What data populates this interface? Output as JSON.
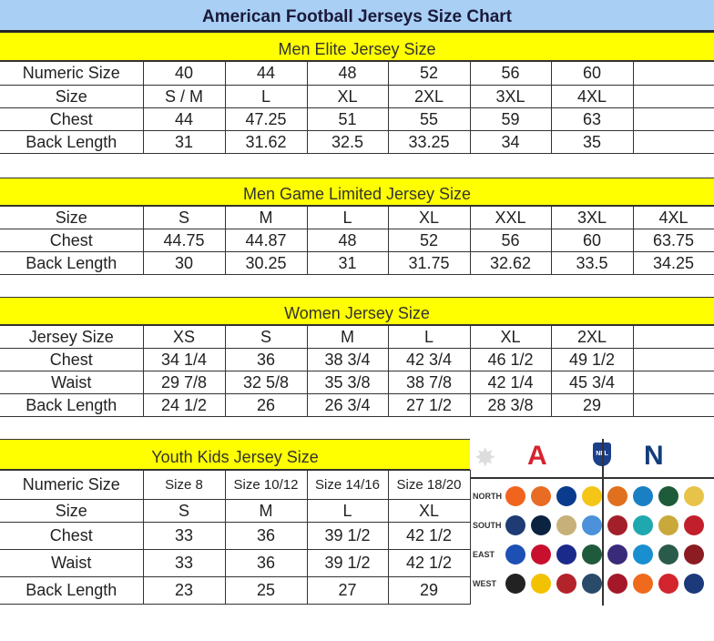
{
  "title": "American Football Jerseys Size Chart",
  "sections": [
    {
      "key": "men_elite",
      "heading": "Men Elite Jersey Size",
      "rows": [
        [
          "Numeric Size",
          "40",
          "44",
          "48",
          "52",
          "56",
          "60",
          ""
        ],
        [
          "Size",
          "S / M",
          "L",
          "XL",
          "2XL",
          "3XL",
          "4XL",
          ""
        ],
        [
          "Chest",
          "44",
          "47.25",
          "51",
          "55",
          "59",
          "63",
          ""
        ],
        [
          "Back Length",
          "31",
          "31.62",
          "32.5",
          "33.25",
          "34",
          "35",
          ""
        ]
      ]
    },
    {
      "key": "men_game_limited",
      "heading": "Men Game Limited Jersey Size",
      "rows": [
        [
          "Size",
          "S",
          "M",
          "L",
          "XL",
          "XXL",
          "3XL",
          "4XL"
        ],
        [
          "Chest",
          "44.75",
          "44.87",
          "48",
          "52",
          "56",
          "60",
          "63.75"
        ],
        [
          "Back Length",
          "30",
          "30.25",
          "31",
          "31.75",
          "32.62",
          "33.5",
          "34.25"
        ]
      ]
    },
    {
      "key": "women",
      "heading": "Women Jersey Size",
      "rows": [
        [
          "Jersey Size",
          "XS",
          "S",
          "M",
          "L",
          "XL",
          "2XL",
          ""
        ],
        [
          "Chest",
          "34 1/4",
          "36",
          "38 3/4",
          "42 3/4",
          "46 1/2",
          "49 1/2",
          ""
        ],
        [
          "Waist",
          "29 7/8",
          "32 5/8",
          "35 3/8",
          "38 7/8",
          "42 1/4",
          "45 3/4",
          ""
        ],
        [
          "Back Length",
          "24 1/2",
          "26",
          "26 3/4",
          "27 1/2",
          "28 3/8",
          "29",
          ""
        ]
      ]
    },
    {
      "key": "youth",
      "heading": "Youth Kids Jersey Size",
      "rows": [
        [
          "Numeric Size",
          "Size 8",
          "Size 10/12",
          "Size 14/16",
          "Size 18/20"
        ],
        [
          "Size",
          "S",
          "M",
          "L",
          "XL"
        ],
        [
          "Chest",
          "33",
          "36",
          "39 1/2",
          "42 1/2"
        ],
        [
          "Waist",
          "33",
          "36",
          "39 1/2",
          "42 1/2"
        ],
        [
          "Back Length",
          "23",
          "25",
          "27",
          "29"
        ]
      ]
    }
  ],
  "logos": {
    "afc_color": "#d6232f",
    "nfc_color": "#123d7a",
    "divisions": [
      "NORTH",
      "SOUTH",
      "EAST",
      "WEST"
    ],
    "afc": [
      [
        {
          "icon": "bengals-logo",
          "color": "#f0641e"
        },
        {
          "icon": "browns-logo",
          "color": "#e86c24"
        },
        {
          "icon": "colts-logo",
          "color": "#0a3b8c"
        },
        {
          "icon": "steelers-logo",
          "color": "#f5c518"
        }
      ],
      [
        {
          "icon": "cowboys-logo",
          "color": "#1e3c73"
        },
        {
          "icon": "texans-logo",
          "color": "#0b2240"
        },
        {
          "icon": "saints-logo",
          "color": "#c8b07a"
        },
        {
          "icon": "titans-logo",
          "color": "#4b92db"
        }
      ],
      [
        {
          "icon": "bills-logo",
          "color": "#1d50b4"
        },
        {
          "icon": "patriots-logo",
          "color": "#c8102e"
        },
        {
          "icon": "giants-logo",
          "color": "#1a2a8a"
        },
        {
          "icon": "jets-logo",
          "color": "#1f5a3c"
        }
      ],
      [
        {
          "icon": "raiders-logo",
          "color": "#222222"
        },
        {
          "icon": "chargers-logo",
          "color": "#f2c200"
        },
        {
          "icon": "49ers-logo",
          "color": "#b3242a"
        },
        {
          "icon": "seahawks-logo",
          "color": "#2a4a6a"
        }
      ]
    ],
    "nfc": [
      [
        {
          "icon": "bears-logo",
          "color": "#e0701e"
        },
        {
          "icon": "lions-logo",
          "color": "#1a80c4"
        },
        {
          "icon": "packers-logo",
          "color": "#1e5b3a"
        },
        {
          "icon": "vikings-logo",
          "color": "#e8c34a"
        }
      ],
      [
        {
          "icon": "falcons-logo",
          "color": "#a3202a"
        },
        {
          "icon": "dolphins-logo",
          "color": "#20a8b0"
        },
        {
          "icon": "jaguars-logo",
          "color": "#c9a93a"
        },
        {
          "icon": "buccaneers-logo",
          "color": "#c21f2c"
        }
      ],
      [
        {
          "icon": "ravens-logo",
          "color": "#3a2a7a"
        },
        {
          "icon": "panthers-logo",
          "color": "#1a8fd0"
        },
        {
          "icon": "eagles-logo",
          "color": "#2a5a4a"
        },
        {
          "icon": "redskins-logo",
          "color": "#8a1c22"
        }
      ],
      [
        {
          "icon": "cardinals-logo",
          "color": "#a5182a"
        },
        {
          "icon": "broncos-logo",
          "color": "#f06a1e"
        },
        {
          "icon": "chiefs-logo",
          "color": "#d2252e"
        },
        {
          "icon": "rams-logo",
          "color": "#1c3a7a"
        }
      ]
    ]
  }
}
